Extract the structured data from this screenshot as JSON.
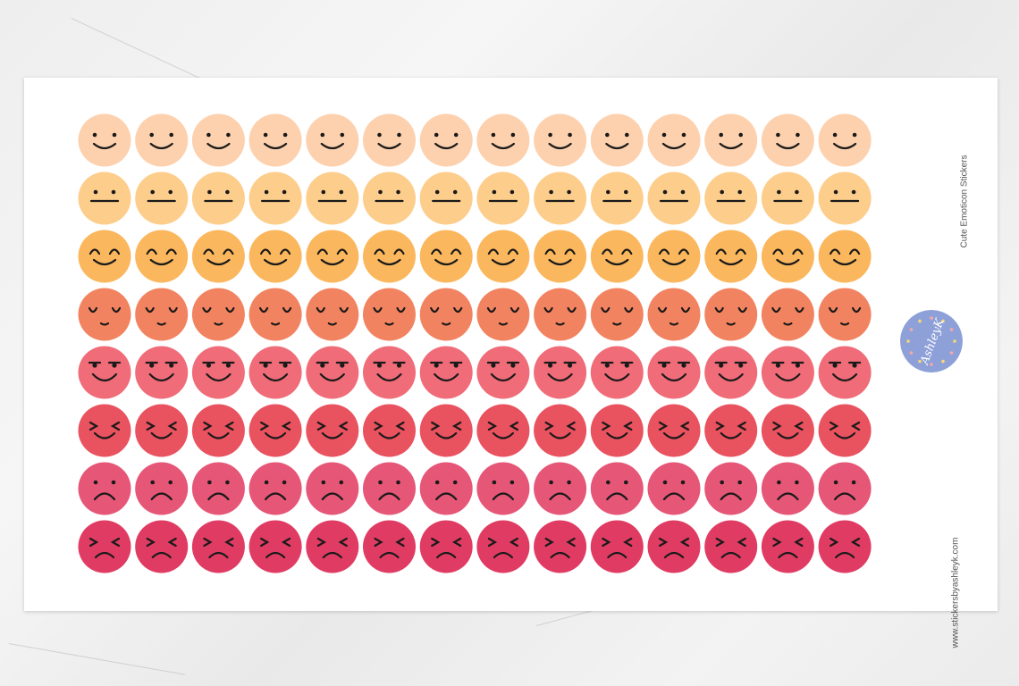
{
  "sheet": {
    "title": "Cute Emoticon Stickers",
    "url": "www.stickersbyashleyk.com",
    "logo_text": "by AshleyK",
    "logo_color": "#8ea0d8"
  },
  "grid": {
    "columns": 14,
    "rows": [
      {
        "face": "smile",
        "color": "#fdd1ae"
      },
      {
        "face": "neutral",
        "color": "#fdcd8b"
      },
      {
        "face": "happy-closed-eyes",
        "color": "#fbb75d"
      },
      {
        "face": "content-sleepy",
        "color": "#f28360"
      },
      {
        "face": "smirk",
        "color": "#ef6c78"
      },
      {
        "face": "laughing-squint",
        "color": "#e9525f"
      },
      {
        "face": "sad",
        "color": "#e65677"
      },
      {
        "face": "angry-squint",
        "color": "#e03c63"
      }
    ]
  }
}
